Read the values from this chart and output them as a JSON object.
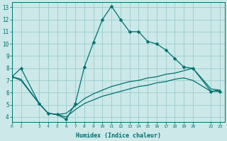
{
  "xlabel": "Humidex (Indice chaleur)",
  "bg_color": "#cce8e8",
  "grid_color": "#99cccc",
  "line_color": "#007070",
  "xlim": [
    0,
    23.5
  ],
  "ylim": [
    3.6,
    13.4
  ],
  "xticks": [
    0,
    1,
    3,
    4,
    5,
    6,
    7,
    8,
    9,
    10,
    11,
    12,
    13,
    14,
    15,
    16,
    17,
    18,
    19,
    20,
    22,
    23
  ],
  "yticks": [
    4,
    5,
    6,
    7,
    8,
    9,
    10,
    11,
    12,
    13
  ],
  "line1_x": [
    0,
    1,
    3,
    4,
    5,
    6,
    7,
    8,
    9,
    10,
    11,
    12,
    13,
    14,
    15,
    16,
    17,
    18,
    19,
    20,
    22,
    23
  ],
  "line1_y": [
    7.3,
    8.0,
    5.1,
    4.3,
    4.2,
    3.8,
    5.1,
    8.1,
    10.1,
    12.0,
    13.1,
    12.0,
    11.0,
    11.0,
    10.2,
    10.0,
    9.5,
    8.8,
    8.1,
    8.0,
    6.1,
    6.1
  ],
  "line2_x": [
    0,
    1,
    3,
    4,
    5,
    6,
    7,
    8,
    9,
    10,
    11,
    12,
    13,
    14,
    15,
    16,
    17,
    18,
    19,
    20,
    22,
    23
  ],
  "line2_y": [
    7.3,
    7.0,
    5.1,
    4.3,
    4.2,
    4.3,
    4.9,
    5.5,
    5.9,
    6.2,
    6.5,
    6.7,
    6.9,
    7.0,
    7.2,
    7.3,
    7.5,
    7.6,
    7.8,
    8.0,
    6.3,
    6.2
  ],
  "line3_x": [
    0,
    1,
    3,
    4,
    5,
    6,
    7,
    8,
    9,
    10,
    11,
    12,
    13,
    14,
    15,
    16,
    17,
    18,
    19,
    20,
    22,
    23
  ],
  "line3_y": [
    7.3,
    7.1,
    5.1,
    4.3,
    4.2,
    4.0,
    4.6,
    5.1,
    5.4,
    5.7,
    5.9,
    6.1,
    6.3,
    6.5,
    6.6,
    6.8,
    6.9,
    7.1,
    7.2,
    7.0,
    6.1,
    6.2
  ],
  "line1_marker_x": [
    0,
    1,
    3,
    4,
    5,
    6,
    7,
    8,
    9,
    10,
    11,
    12,
    13,
    14,
    15,
    16,
    17,
    18,
    19,
    20,
    22,
    23
  ],
  "line1_marker_y": [
    7.3,
    8.0,
    5.1,
    4.3,
    4.2,
    3.8,
    5.1,
    8.1,
    10.1,
    12.0,
    13.1,
    12.0,
    11.0,
    11.0,
    10.2,
    10.0,
    9.5,
    8.8,
    8.1,
    8.0,
    6.1,
    6.1
  ],
  "marker_size": 2.5,
  "lw": 0.9
}
